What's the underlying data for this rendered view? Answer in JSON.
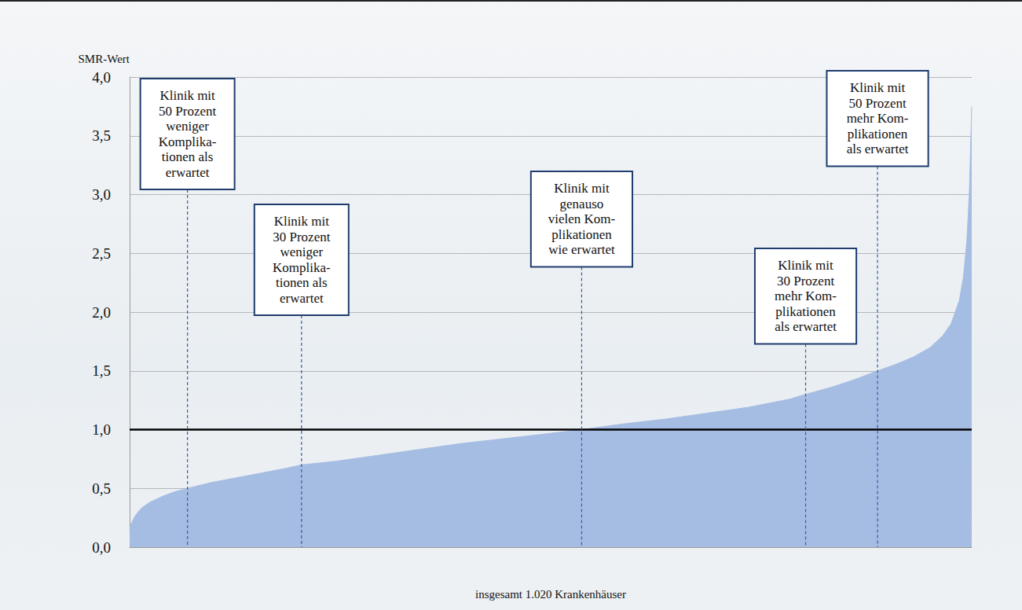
{
  "chart_data": {
    "type": "area",
    "y_label": "SMR-Wert",
    "x_label": "insgesamt 1.020 Krankenhäuser",
    "x": [
      1,
      3,
      8,
      15,
      25,
      40,
      55,
      71,
      100,
      130,
      160,
      190,
      209,
      250,
      300,
      350,
      400,
      450,
      500,
      548,
      600,
      650,
      700,
      750,
      800,
      819,
      850,
      880,
      906,
      930,
      950,
      970,
      985,
      995,
      1000,
      1005,
      1010,
      1014,
      1017,
      1020
    ],
    "values": [
      0.15,
      0.2,
      0.27,
      0.33,
      0.38,
      0.43,
      0.47,
      0.5,
      0.55,
      0.59,
      0.63,
      0.67,
      0.7,
      0.73,
      0.78,
      0.83,
      0.88,
      0.92,
      0.96,
      1.0,
      1.05,
      1.09,
      1.14,
      1.19,
      1.26,
      1.3,
      1.36,
      1.43,
      1.5,
      1.56,
      1.62,
      1.7,
      1.8,
      1.9,
      2.0,
      2.1,
      2.3,
      2.6,
      3.0,
      3.75
    ],
    "color": "#a6bde3",
    "xlim": [
      1,
      1020
    ],
    "ylim": [
      0,
      4
    ],
    "yticks": [
      {
        "value": 0,
        "label": "0,0"
      },
      {
        "value": 0.5,
        "label": "0,5"
      },
      {
        "value": 1,
        "label": "1,0"
      },
      {
        "value": 1.5,
        "label": "1,5"
      },
      {
        "value": 2,
        "label": "2,0"
      },
      {
        "value": 2.5,
        "label": "2,5"
      },
      {
        "value": 3,
        "label": "3,0"
      },
      {
        "value": 3.5,
        "label": "3,5"
      },
      {
        "value": 4,
        "label": "4,0"
      }
    ],
    "reference_value": 1,
    "grid": true,
    "tick_labels": "y",
    "annotations": [
      {
        "text": "Klinik mit\n50 Prozent\nweniger\nKomplika-\ntionen als\nerwartet",
        "x": 71
      },
      {
        "text": "Klinik mit\n30 Prozent\nweniger\nKomplika-\ntionen als\nerwartet",
        "x": 209
      },
      {
        "text": "Klinik mit\ngenauso\nvielen Kom-\nplikationen\nwie erwartet",
        "x": 548
      },
      {
        "text": "Klinik mit\n30 Prozent\nmehr Kom-\nplikationen\nals erwartet",
        "x": 819
      },
      {
        "text": "Klinik mit\n50 Prozent\nmehr Kom-\nplikationen\nals erwartet",
        "x": 906
      }
    ]
  }
}
